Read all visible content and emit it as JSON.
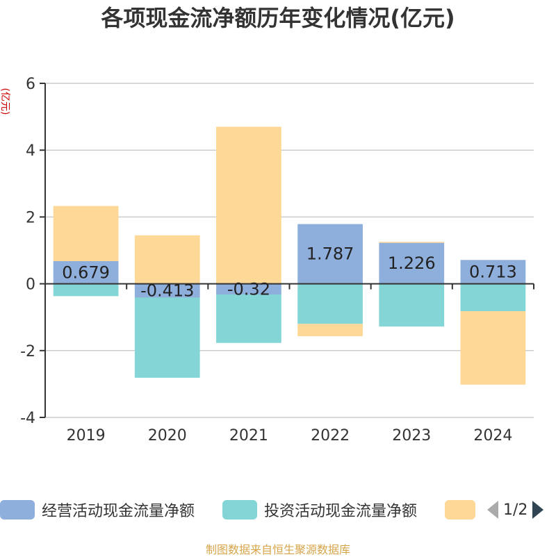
{
  "title": "各项现金流净额历年变化情况(亿元)",
  "footer": "制图数据来自恒生聚源数据库",
  "legend": {
    "items": [
      "经营活动现金流量净额",
      "投资活动现金流量净额",
      ""
    ],
    "page_indicator": "1/2"
  },
  "colors": {
    "operating": "#8eaedb",
    "investing": "#84d6d6",
    "financing": "#fdd897",
    "axis": "#333333",
    "grid": "#cccccc",
    "unit_label": "#cc0000"
  },
  "chart_data": {
    "type": "bar",
    "stacked": true,
    "unit": "(亿元)",
    "categories": [
      "2019",
      "2020",
      "2021",
      "2022",
      "2023",
      "2024"
    ],
    "ylim": [
      -4,
      6
    ],
    "yticks": [
      -4,
      -2,
      0,
      2,
      4,
      6
    ],
    "grid": true,
    "legend_position": "bottom",
    "series": [
      {
        "name": "经营活动现金流量净额",
        "values": [
          0.679,
          -0.413,
          -0.32,
          1.787,
          1.226,
          0.713
        ],
        "show_labels": true
      },
      {
        "name": "投资活动现金流量净额",
        "values": [
          -0.37,
          -2.4,
          -1.45,
          -1.2,
          -1.28,
          -0.82
        ],
        "show_labels": false
      },
      {
        "name": "",
        "values": [
          1.65,
          1.45,
          4.7,
          -0.37,
          0.03,
          -2.2
        ],
        "show_labels": false
      }
    ],
    "data_labels": [
      "0.679",
      "-0.413",
      "-0.32",
      "1.787",
      "1.226",
      "0.713"
    ]
  }
}
